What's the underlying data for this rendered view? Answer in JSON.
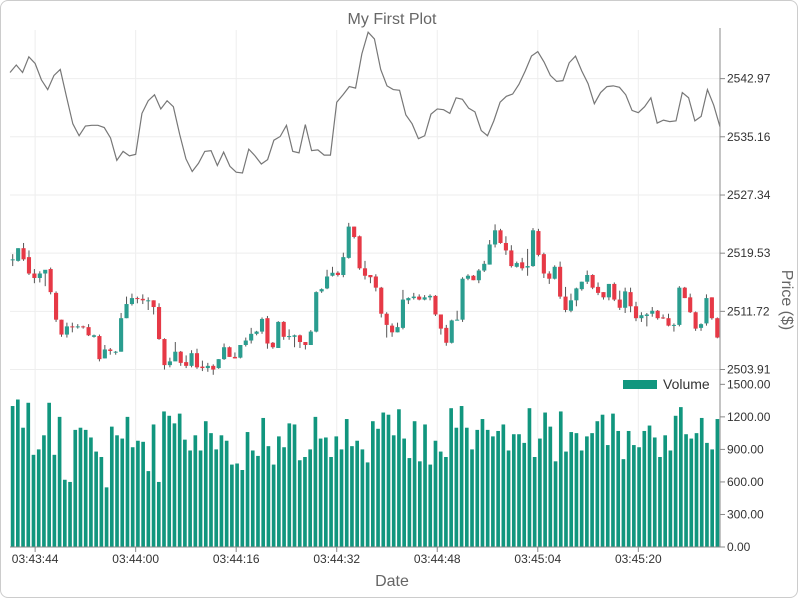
{
  "chart_data": {
    "type": "candlestick_volume",
    "title": "My First Plot",
    "xlabel": "Date",
    "ylabel": "Price ($)",
    "x_ticks": [
      "03:43:44",
      "03:44:00",
      "03:44:16",
      "03:44:32",
      "03:44:48",
      "03:45:04",
      "03:45:20"
    ],
    "x_range_seconds": [
      0,
      113
    ],
    "price_axis": {
      "ylim": [
        2502.5,
        2549.5
      ],
      "ticks": [
        "2503.91",
        "2511.72",
        "2519.53",
        "2527.34",
        "2535.16",
        "2542.97"
      ]
    },
    "volume_axis": {
      "ylim": [
        0,
        1540
      ],
      "ticks": [
        "0.00",
        "300.00",
        "600.00",
        "900.00",
        "1200.00",
        "1500.00"
      ]
    },
    "legend": {
      "entries": [
        "Volume"
      ],
      "placement": "top-right"
    },
    "colors": {
      "up": "#2a9d8f",
      "down": "#e63946",
      "volume": "#11967e",
      "line": "#777777",
      "wick": "#555555",
      "grid": "#eeeeee",
      "axis": "#888888"
    },
    "grid": true,
    "line_series": [
      2543.8,
      2544.8,
      2543.8,
      2545.9,
      2545.0,
      2542.8,
      2541.5,
      2543.4,
      2544.2,
      2540.5,
      2536.9,
      2535.3,
      2536.6,
      2536.7,
      2536.7,
      2536.4,
      2535.0,
      2532.0,
      2533.2,
      2532.6,
      2532.8,
      2538.3,
      2540.0,
      2540.8,
      2538.9,
      2540.0,
      2539.2,
      2535.5,
      2532.2,
      2530.5,
      2531.6,
      2533.2,
      2533.3,
      2531.3,
      2533.1,
      2531.2,
      2530.4,
      2530.3,
      2533.5,
      2532.6,
      2531.5,
      2532.1,
      2534.7,
      2535.2,
      2536.7,
      2533.2,
      2533.0,
      2536.8,
      2533.3,
      2533.4,
      2532.7,
      2532.7,
      2539.8,
      2540.8,
      2541.9,
      2541.7,
      2546.3,
      2549.2,
      2548.3,
      2544.2,
      2542.0,
      2541.5,
      2541.4,
      2538.1,
      2536.9,
      2534.9,
      2535.3,
      2538.2,
      2538.9,
      2538.8,
      2538.3,
      2540.4,
      2540.2,
      2539.0,
      2538.5,
      2536.0,
      2535.3,
      2537.3,
      2539.8,
      2540.6,
      2540.9,
      2542.2,
      2544.0,
      2546.0,
      2546.6,
      2545.2,
      2543.4,
      2542.6,
      2542.7,
      2545.1,
      2546.0,
      2544.0,
      2542.3,
      2539.6,
      2541.1,
      2541.9,
      2542.0,
      2541.8,
      2540.8,
      2538.7,
      2538.4,
      2539.2,
      2540.4,
      2537.0,
      2537.4,
      2537.2,
      2537.3,
      2541.1,
      2540.4,
      2537.3,
      2537.9,
      2541.5,
      2539.4,
      2536.5
    ],
    "candles": [
      [
        2518.6,
        2518.7,
        2517.8,
        2519.4
      ],
      [
        2518.5,
        2520.2,
        2518.4,
        2520.2
      ],
      [
        2520.2,
        2518.7,
        2518.5,
        2520.9
      ],
      [
        2519.0,
        2516.8,
        2516.6,
        2519.9
      ],
      [
        2516.8,
        2516.2,
        2515.5,
        2517.4
      ],
      [
        2516.2,
        2516.8,
        2515.6,
        2517.1
      ],
      [
        2516.8,
        2517.3,
        2515.1,
        2517.2
      ],
      [
        2517.4,
        2514.3,
        2514.0,
        2517.6
      ],
      [
        2514.2,
        2510.6,
        2510.3,
        2514.4
      ],
      [
        2510.6,
        2508.6,
        2508.3,
        2510.6
      ],
      [
        2508.6,
        2509.7,
        2508.2,
        2510.2
      ],
      [
        2509.7,
        2509.6,
        2508.9,
        2510.2
      ],
      [
        2509.6,
        2509.7,
        2509.4,
        2510.0
      ],
      [
        2509.7,
        2509.6,
        2509.4,
        2509.8
      ],
      [
        2509.6,
        2508.5,
        2508.4,
        2510.0
      ],
      [
        2508.3,
        2508.5,
        2508.2,
        2508.6
      ],
      [
        2508.4,
        2505.3,
        2505.0,
        2508.6
      ],
      [
        2505.4,
        2506.6,
        2505.4,
        2507.2
      ],
      [
        2506.6,
        2506.4,
        2505.9,
        2506.8
      ],
      [
        2506.3,
        2506.3,
        2505.9,
        2506.4
      ],
      [
        2506.3,
        2510.8,
        2506.3,
        2511.5
      ],
      [
        2510.8,
        2512.7,
        2510.8,
        2513.7
      ],
      [
        2512.7,
        2513.5,
        2512.5,
        2514.1
      ],
      [
        2513.5,
        2513.4,
        2512.8,
        2513.7
      ],
      [
        2513.4,
        2513.2,
        2512.7,
        2514.0
      ],
      [
        2513.2,
        2513.2,
        2511.9,
        2513.6
      ],
      [
        2513.2,
        2512.3,
        2511.3,
        2513.2
      ],
      [
        2512.3,
        2508.0,
        2507.9,
        2512.8
      ],
      [
        2508.0,
        2504.5,
        2503.9,
        2508.1
      ],
      [
        2504.5,
        2505.0,
        2504.2,
        2505.5
      ],
      [
        2505.0,
        2506.3,
        2505.1,
        2507.6
      ],
      [
        2506.3,
        2504.8,
        2504.4,
        2506.4
      ],
      [
        2504.9,
        2504.4,
        2504.1,
        2505.8
      ],
      [
        2504.4,
        2506.1,
        2504.2,
        2506.5
      ],
      [
        2506.1,
        2504.2,
        2504.0,
        2506.7
      ],
      [
        2504.3,
        2504.1,
        2503.7,
        2505.1
      ],
      [
        2504.1,
        2504.4,
        2503.6,
        2504.8
      ],
      [
        2504.4,
        2503.9,
        2503.2,
        2504.6
      ],
      [
        2504.1,
        2505.3,
        2504.0,
        2505.3
      ],
      [
        2505.3,
        2506.9,
        2505.2,
        2507.4
      ],
      [
        2506.9,
        2505.6,
        2505.6,
        2507.0
      ],
      [
        2505.6,
        2505.4,
        2505.4,
        2506.2
      ],
      [
        2505.5,
        2507.2,
        2505.4,
        2507.2
      ],
      [
        2507.2,
        2507.8,
        2507.0,
        2508.2
      ],
      [
        2507.8,
        2508.7,
        2507.4,
        2509.5
      ],
      [
        2508.7,
        2509.0,
        2508.5,
        2509.1
      ],
      [
        2509.0,
        2510.7,
        2508.7,
        2510.9
      ],
      [
        2510.8,
        2507.4,
        2506.7,
        2511.1
      ],
      [
        2507.5,
        2506.9,
        2506.7,
        2507.6
      ],
      [
        2506.8,
        2510.3,
        2506.8,
        2510.4
      ],
      [
        2510.3,
        2508.3,
        2507.9,
        2510.4
      ],
      [
        2508.3,
        2508.4,
        2507.9,
        2509.3
      ],
      [
        2508.3,
        2508.5,
        2506.9,
        2508.6
      ],
      [
        2508.5,
        2507.6,
        2506.8,
        2508.6
      ],
      [
        2507.6,
        2507.2,
        2506.6,
        2507.5
      ],
      [
        2507.2,
        2509.0,
        2507.2,
        2509.2
      ],
      [
        2509.0,
        2514.3,
        2508.9,
        2514.4
      ],
      [
        2514.4,
        2514.7,
        2514.2,
        2514.8
      ],
      [
        2514.8,
        2516.4,
        2514.7,
        2517.3
      ],
      [
        2516.5,
        2516.9,
        2516.4,
        2517.7
      ],
      [
        2516.9,
        2516.6,
        2516.4,
        2517.1
      ],
      [
        2516.6,
        2519.0,
        2516.3,
        2519.6
      ],
      [
        2518.9,
        2523.1,
        2518.8,
        2523.6
      ],
      [
        2523.1,
        2521.7,
        2521.5,
        2523.1
      ],
      [
        2521.8,
        2517.5,
        2517.3,
        2521.9
      ],
      [
        2517.5,
        2516.5,
        2516.0,
        2518.5
      ],
      [
        2516.6,
        2516.3,
        2515.5,
        2516.6
      ],
      [
        2516.4,
        2514.9,
        2514.4,
        2516.7
      ],
      [
        2514.9,
        2511.4,
        2510.9,
        2515.0
      ],
      [
        2511.4,
        2509.9,
        2508.2,
        2511.6
      ],
      [
        2509.8,
        2508.9,
        2508.3,
        2510.1
      ],
      [
        2508.9,
        2509.6,
        2508.9,
        2510.2
      ],
      [
        2509.5,
        2513.3,
        2509.3,
        2514.6
      ],
      [
        2513.2,
        2513.5,
        2512.7,
        2513.6
      ],
      [
        2513.5,
        2513.7,
        2513.3,
        2514.2
      ],
      [
        2513.7,
        2513.3,
        2513.2,
        2514.0
      ],
      [
        2513.3,
        2513.6,
        2513.2,
        2513.9
      ],
      [
        2513.6,
        2513.8,
        2513.2,
        2514.0
      ],
      [
        2513.8,
        2511.3,
        2511.1,
        2513.9
      ],
      [
        2511.3,
        2509.4,
        2508.6,
        2511.2
      ],
      [
        2509.5,
        2507.5,
        2507.1,
        2509.9
      ],
      [
        2507.5,
        2510.5,
        2507.4,
        2510.6
      ],
      [
        2510.6,
        2510.6,
        2510.5,
        2511.8
      ],
      [
        2510.6,
        2516.1,
        2510.3,
        2516.3
      ],
      [
        2516.1,
        2516.5,
        2515.9,
        2516.7
      ],
      [
        2516.5,
        2515.9,
        2515.9,
        2516.6
      ],
      [
        2515.9,
        2517.2,
        2515.5,
        2517.4
      ],
      [
        2517.2,
        2518.1,
        2517.0,
        2518.5
      ],
      [
        2518.0,
        2520.7,
        2518.0,
        2521.3
      ],
      [
        2520.7,
        2522.6,
        2520.3,
        2523.4
      ],
      [
        2522.6,
        2520.9,
        2520.8,
        2522.8
      ],
      [
        2520.9,
        2519.9,
        2519.3,
        2521.8
      ],
      [
        2519.9,
        2517.8,
        2517.6,
        2520.6
      ],
      [
        2517.7,
        2518.2,
        2517.6,
        2518.4
      ],
      [
        2518.3,
        2517.5,
        2517.2,
        2518.9
      ],
      [
        2517.6,
        2517.8,
        2516.5,
        2520.1
      ],
      [
        2517.8,
        2522.6,
        2517.7,
        2522.9
      ],
      [
        2522.5,
        2519.3,
        2519.1,
        2522.8
      ],
      [
        2519.4,
        2516.8,
        2516.2,
        2519.6
      ],
      [
        2516.8,
        2516.1,
        2515.4,
        2517.1
      ],
      [
        2516.1,
        2517.7,
        2516.0,
        2517.9
      ],
      [
        2517.7,
        2513.7,
        2513.4,
        2518.4
      ],
      [
        2513.7,
        2511.9,
        2511.6,
        2515.0
      ],
      [
        2511.8,
        2513.2,
        2511.6,
        2514.1
      ],
      [
        2513.2,
        2514.8,
        2512.4,
        2514.9
      ],
      [
        2514.7,
        2515.7,
        2514.5,
        2515.7
      ],
      [
        2515.7,
        2516.6,
        2515.4,
        2517.2
      ],
      [
        2516.6,
        2514.9,
        2514.7,
        2516.7
      ],
      [
        2515.0,
        2514.2,
        2513.9,
        2515.6
      ],
      [
        2514.3,
        2513.6,
        2513.3,
        2514.3
      ],
      [
        2513.6,
        2515.4,
        2513.2,
        2515.4
      ],
      [
        2515.4,
        2513.3,
        2513.1,
        2515.6
      ],
      [
        2513.3,
        2512.2,
        2511.9,
        2514.5
      ],
      [
        2512.2,
        2514.4,
        2511.5,
        2514.9
      ],
      [
        2514.3,
        2512.4,
        2511.6,
        2514.9
      ],
      [
        2512.4,
        2510.8,
        2510.4,
        2513.0
      ],
      [
        2510.8,
        2511.2,
        2510.3,
        2511.6
      ],
      [
        2511.1,
        2511.3,
        2509.7,
        2511.5
      ],
      [
        2511.4,
        2511.8,
        2511.0,
        2512.3
      ],
      [
        2511.8,
        2510.8,
        2510.6,
        2511.9
      ],
      [
        2510.9,
        2510.8,
        2510.7,
        2511.3
      ],
      [
        2510.8,
        2509.8,
        2509.7,
        2511.4
      ],
      [
        2509.8,
        2509.9,
        2509.0,
        2510.1
      ],
      [
        2509.9,
        2514.9,
        2509.7,
        2515.1
      ],
      [
        2514.9,
        2513.5,
        2513.5,
        2515.0
      ],
      [
        2513.6,
        2511.6,
        2511.5,
        2514.1
      ],
      [
        2511.6,
        2509.4,
        2509.1,
        2511.7
      ],
      [
        2509.5,
        2510.0,
        2509.1,
        2510.1
      ],
      [
        2510.1,
        2513.5,
        2509.8,
        2514.0
      ],
      [
        2513.6,
        2510.8,
        2510.6,
        2513.6
      ],
      [
        2510.8,
        2508.2,
        2508.1,
        2510.9
      ]
    ],
    "volume_bars": [
      1300,
      1360,
      1100,
      1330,
      850,
      900,
      1030,
      1330,
      850,
      1200,
      620,
      600,
      1080,
      1100,
      1080,
      1010,
      880,
      830,
      550,
      1110,
      1030,
      1000,
      1200,
      920,
      980,
      970,
      700,
      1130,
      600,
      1250,
      1210,
      1140,
      1230,
      990,
      890,
      1030,
      890,
      1160,
      1050,
      900,
      1030,
      980,
      760,
      770,
      710,
      1060,
      890,
      840,
      1190,
      930,
      760,
      1020,
      920,
      1140,
      1130,
      800,
      830,
      900,
      1200,
      1000,
      1010,
      830,
      1020,
      900,
      1180,
      930,
      980,
      900,
      780,
      1160,
      1090,
      1240,
      1220,
      1030,
      1270,
      1000,
      820,
      1160,
      790,
      1130,
      760,
      980,
      880,
      830,
      1280,
      1100,
      1300,
      1100,
      900,
      1080,
      1180,
      1080,
      1020,
      1070,
      1130,
      890,
      1040,
      1040,
      960,
      1280,
      830,
      1000,
      1240,
      1110,
      790,
      1250,
      880,
      1060,
      1050,
      890,
      1020,
      1050,
      1160,
      1220,
      940,
      1230,
      1070,
      810,
      1070,
      940,
      920,
      1070,
      1120,
      1010,
      830,
      1030,
      890,
      1210,
      1290,
      1040,
      1000,
      1050,
      1190,
      960,
      900,
      1180
    ]
  }
}
